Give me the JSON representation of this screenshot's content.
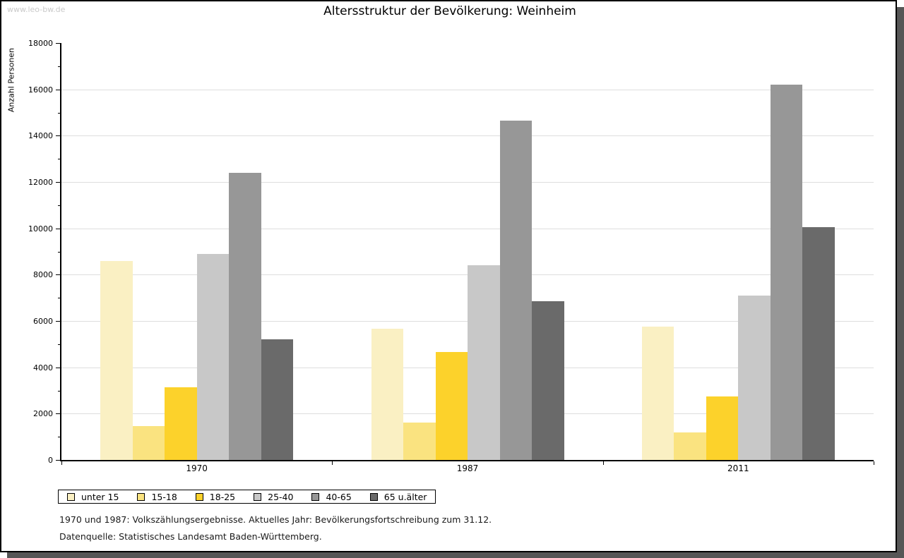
{
  "watermark": "www.leo-bw.de",
  "title": "Altersstruktur der Bevölkerung: Weinheim",
  "chart_data": {
    "type": "bar",
    "title": "Altersstruktur der Bevölkerung: Weinheim",
    "xlabel": "",
    "ylabel": "Anzahl Personen",
    "ylim": [
      0,
      18000
    ],
    "ytick_step": 2000,
    "minor_tick_step": 1000,
    "grid": true,
    "legend_position": "bottom-left",
    "categories": [
      "1970",
      "1987",
      "2011"
    ],
    "series": [
      {
        "name": "unter 15",
        "color": "#FAF0C3",
        "values": [
          8600,
          5650,
          5750
        ]
      },
      {
        "name": "15-18",
        "color": "#FAE380",
        "values": [
          1450,
          1600,
          1200
        ]
      },
      {
        "name": "18-25",
        "color": "#FCD22B",
        "values": [
          3150,
          4650,
          2750
        ]
      },
      {
        "name": "25-40",
        "color": "#C8C8C8",
        "values": [
          8900,
          8400,
          7100
        ]
      },
      {
        "name": "40-65",
        "color": "#979797",
        "values": [
          12400,
          14650,
          16200
        ]
      },
      {
        "name": "65 u.älter",
        "color": "#6A6A6A",
        "values": [
          5200,
          6850,
          10050
        ]
      }
    ]
  },
  "footnotes": {
    "line1": "1970 und 1987: Volkszählungsergebnisse. Aktuelles Jahr: Bevölkerungsfortschreibung zum 31.12.",
    "line2": "Datenquelle: Statistisches Landesamt Baden-Württemberg."
  },
  "colors": {
    "grid": "#DEDEDE",
    "axis": "#000000",
    "watermark": "#CACACA",
    "shadow": "#565656"
  }
}
